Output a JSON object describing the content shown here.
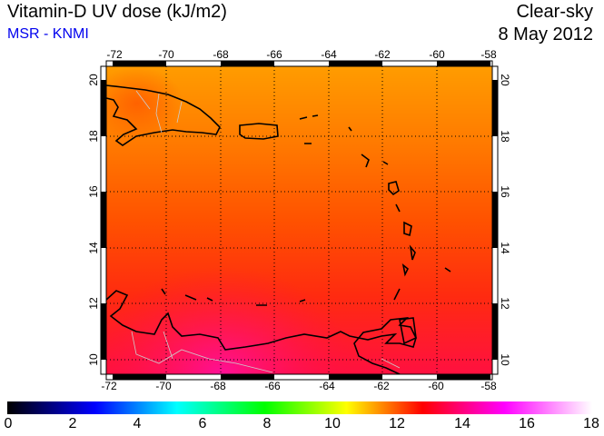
{
  "header": {
    "title": "Vitamin-D UV dose (kJ/m2)",
    "source": "MSR - KNMI",
    "condition": "Clear-sky",
    "date": "8 May 2012"
  },
  "map": {
    "lon_labels": [
      "-72",
      "-70",
      "-68",
      "-66",
      "-64",
      "-62",
      "-60",
      "-58"
    ],
    "lat_labels": [
      "20",
      "18",
      "16",
      "14",
      "12",
      "10"
    ],
    "lon_range": [
      -72.25,
      -57.9
    ],
    "lat_range": [
      9.5,
      20.5
    ]
  },
  "colorbar": {
    "ticks": [
      "0",
      "2",
      "4",
      "6",
      "8",
      "10",
      "12",
      "14",
      "16",
      "18"
    ],
    "range": [
      0,
      18
    ],
    "colors": [
      "#000000",
      "#0000ff",
      "#00ffff",
      "#00ff00",
      "#ffff00",
      "#ff0000",
      "#ff00ff",
      "#ffffff"
    ]
  }
}
